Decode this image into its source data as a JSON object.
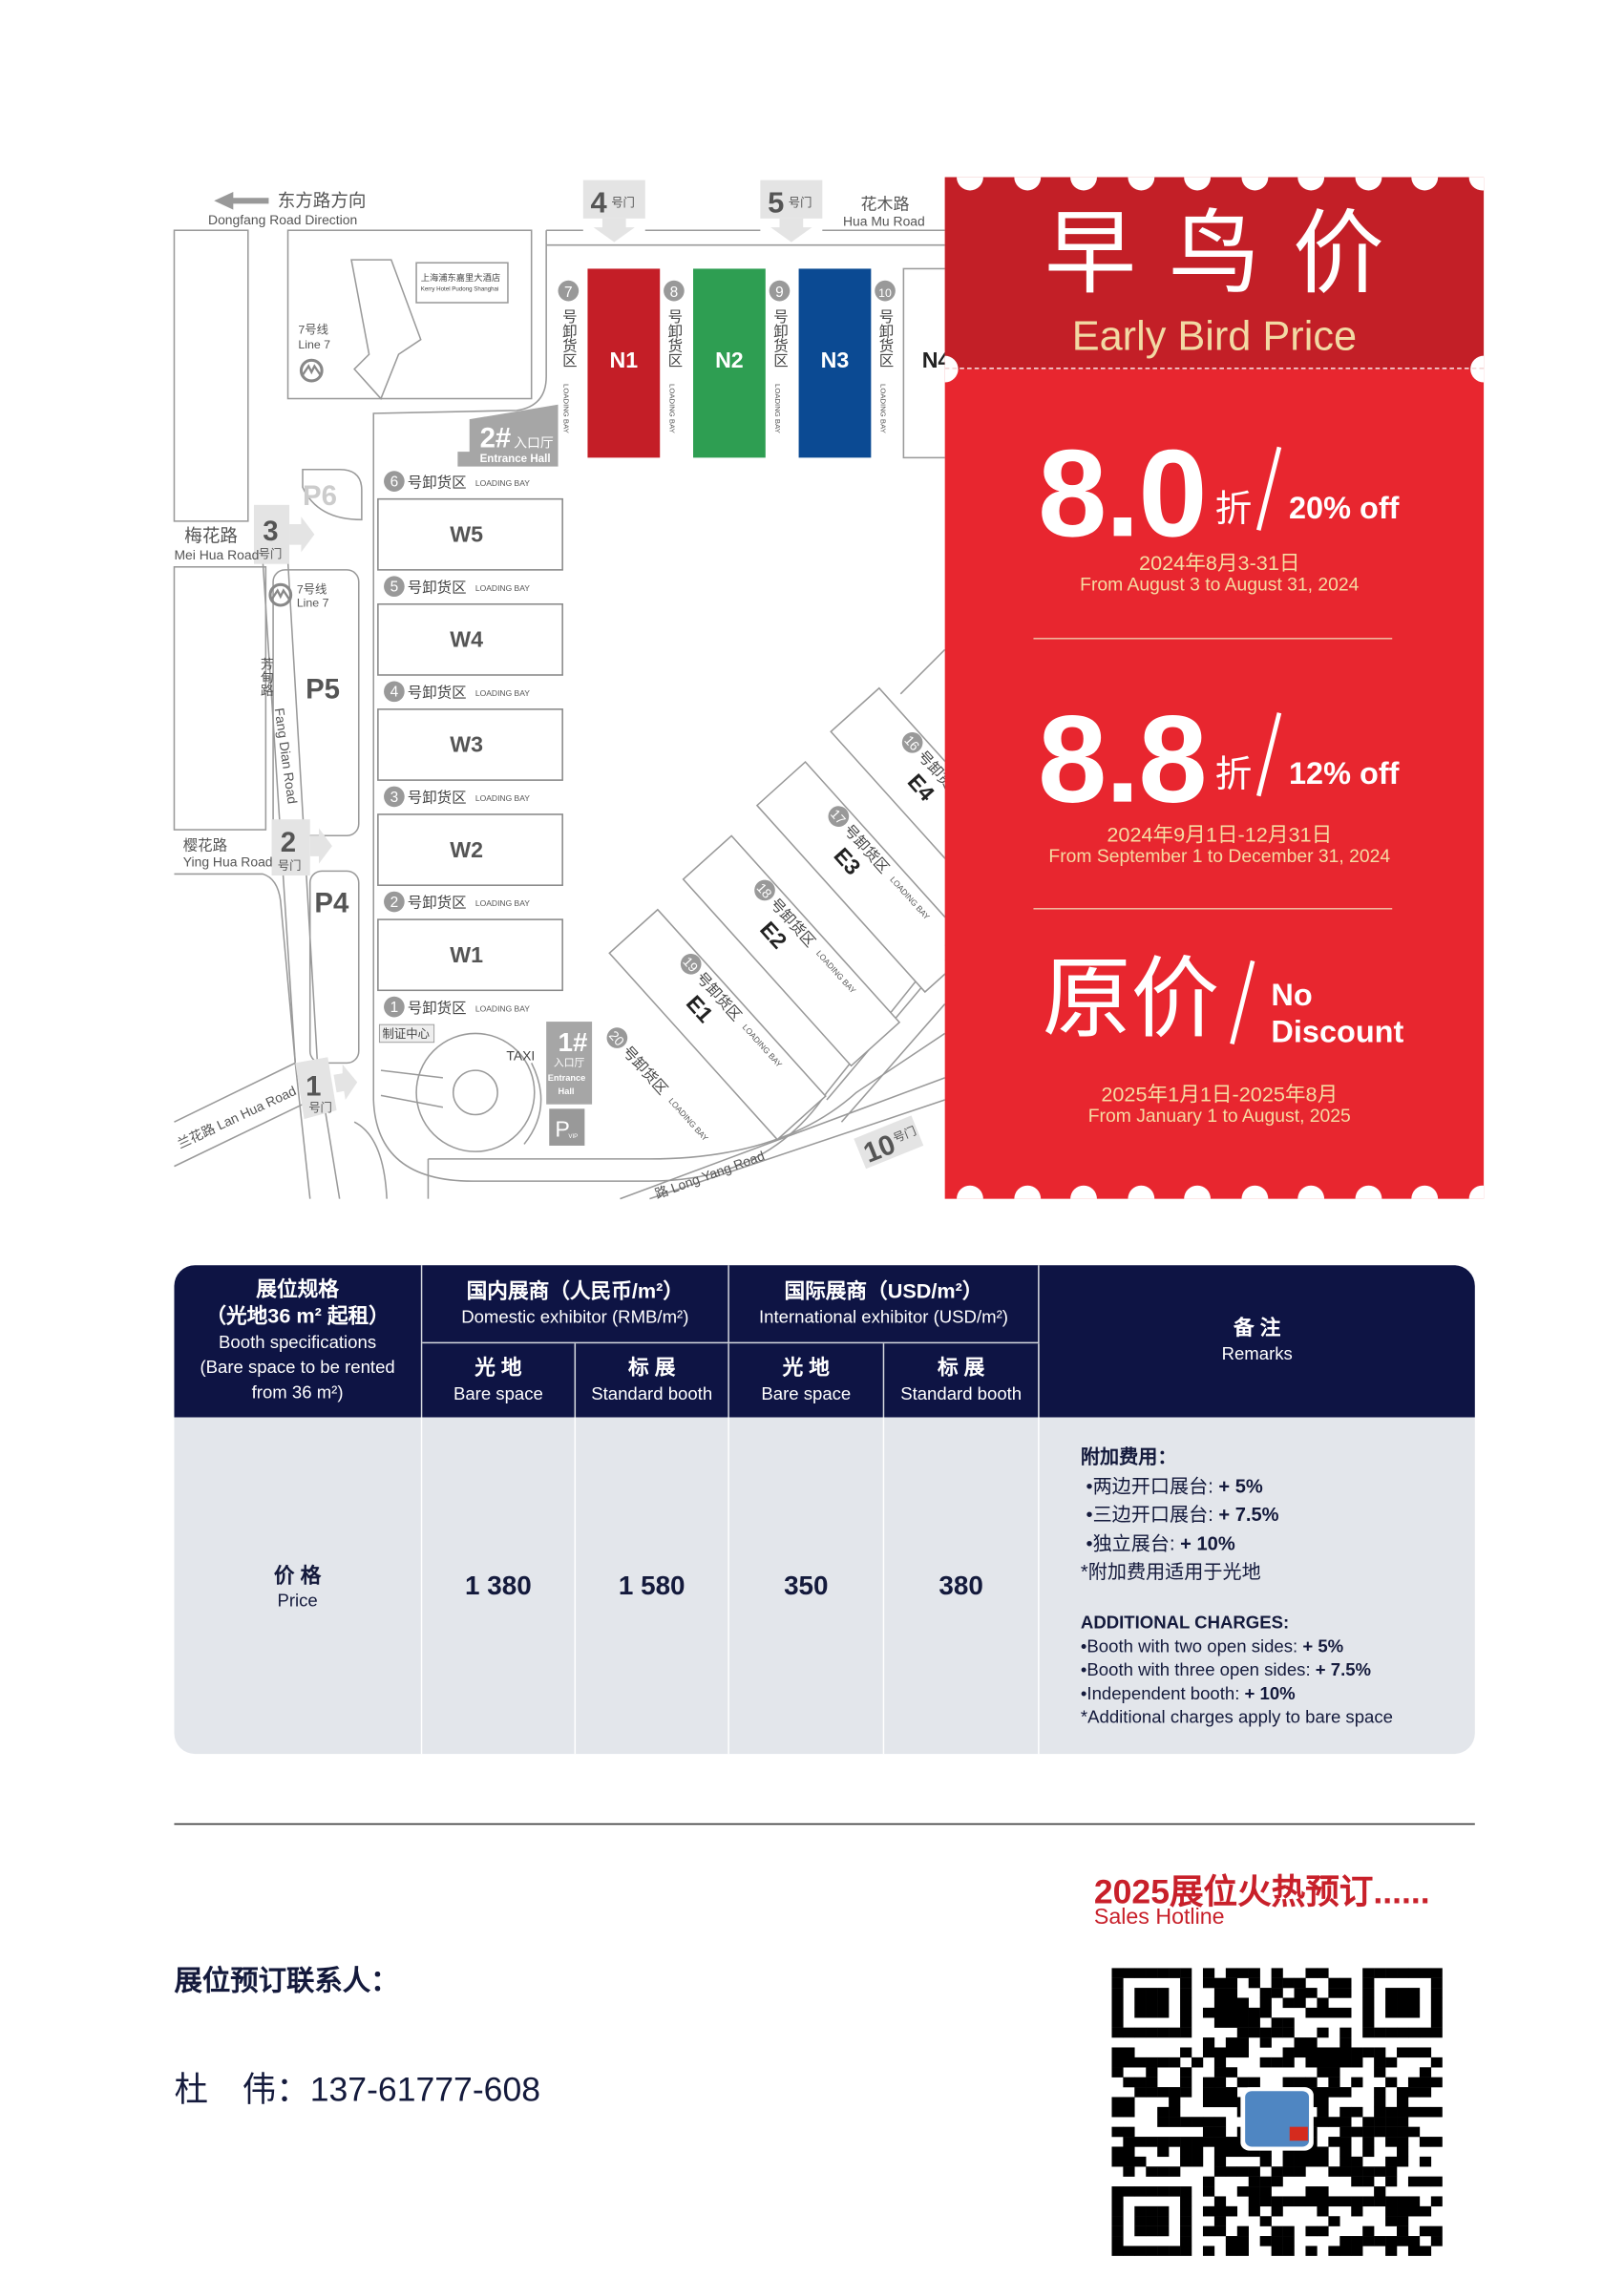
{
  "map": {
    "direction_zh": "东方路方向",
    "direction_en": "Dongfang Road Direction",
    "hua_mu_zh": "花木路",
    "hua_mu_en": "Hua Mu Road",
    "mei_hua_zh": "梅花路",
    "mei_hua_en": "Mei Hua Road",
    "ying_hua_zh": "樱花路",
    "ying_hua_en": "Ying Hua Road",
    "fang_dian_zh": "芳甸路",
    "fang_dian_en": "Fang Dian Road",
    "lan_hua": "兰花路 Lan Hua Road",
    "long_yang": "路 Long Yang Road",
    "gate_suffix": "号门",
    "gates": [
      "4",
      "5",
      "3",
      "2",
      "1",
      "10"
    ],
    "hotel_zh": "上海浦东嘉里大酒店",
    "hotel_en": "Kerry Hotel Pudong Shanghai",
    "metro_zh": "7号线",
    "metro_en": "Line 7",
    "parking": [
      "P6",
      "P5",
      "P4"
    ],
    "entrance2": {
      "num": "2#",
      "zh": "入口厅",
      "en": "Entrance Hall"
    },
    "entrance1": {
      "num": "1#",
      "zh": "入口厅",
      "en1": "Entrance",
      "en2": "Hall"
    },
    "pvip": {
      "p": "P",
      "sub": "VIP"
    },
    "taxi": "TAXI",
    "cert_center": "制证中心",
    "bay_zh": "号卸货区",
    "bay_en": "LOADING BAY",
    "north_halls": [
      {
        "name": "N1",
        "color": "#c41e27",
        "bay": "7"
      },
      {
        "name": "N2",
        "color": "#2e9e52",
        "bay": "8"
      },
      {
        "name": "N3",
        "color": "#0b4a93",
        "bay": "9"
      },
      {
        "name": "N4",
        "color": "#ffffff",
        "bay": "10"
      }
    ],
    "west_halls": [
      {
        "name": "W5",
        "bay": "6"
      },
      {
        "name": "W4",
        "bay": "5"
      },
      {
        "name": "W3",
        "bay": "4"
      },
      {
        "name": "W2",
        "bay": "3"
      },
      {
        "name": "W1",
        "bay": "2"
      }
    ],
    "west_last_bay": "1",
    "east_halls": [
      "E1",
      "E2",
      "E3",
      "E4"
    ],
    "east_bays": [
      "20",
      "19",
      "18",
      "17",
      "16"
    ]
  },
  "promo": {
    "title_zh": "早鸟价",
    "title_en": "Early Bird Price",
    "zhe": "折",
    "tiers": [
      {
        "big": "8.0",
        "off": "20% off",
        "date_zh": "2024年8月3-31日",
        "date_en": "From August 3 to August 31, 2024"
      },
      {
        "big": "8.8",
        "off": "12% off",
        "date_zh": "2024年9月1日-12月31日",
        "date_en": "From September 1 to December 31, 2024"
      }
    ],
    "original": {
      "big": "原价",
      "off1": "No",
      "off2": "Discount",
      "date_zh": "2025年1月1日-2025年8月",
      "date_en": "From January 1 to August, 2025"
    },
    "colors": {
      "header": "#c31f27",
      "body": "#e8262f",
      "accent": "#f2d9a4"
    }
  },
  "table": {
    "spec_zh1": "展位规格",
    "spec_zh2": "（光地36 m² 起租）",
    "spec_en1": "Booth specifications",
    "spec_en2": "(Bare space to be rented",
    "spec_en3": "from 36 m²)",
    "domestic_zh": "国内展商（人民币/m²）",
    "domestic_en": "Domestic exhibitor (RMB/m²)",
    "intl_zh": "国际展商（USD/m²）",
    "intl_en": "International exhibitor (USD/m²)",
    "remarks_zh": "备 注",
    "remarks_en": "Remarks",
    "sub": [
      {
        "zh": "光 地",
        "en": "Bare space"
      },
      {
        "zh": "标 展",
        "en": "Standard booth"
      },
      {
        "zh": "光 地",
        "en": "Bare space"
      },
      {
        "zh": "标 展",
        "en": "Standard booth"
      }
    ],
    "row_zh": "价 格",
    "row_en": "Price",
    "values": [
      "1 380",
      "1 580",
      "350",
      "380"
    ],
    "remarks": {
      "zh_title": "附加费用：",
      "zh_items": [
        {
          "t": "•两边开口展台: ",
          "v": "+ 5%"
        },
        {
          "t": "•三边开口展台: ",
          "v": "+ 7.5%"
        },
        {
          "t": "•独立展台: ",
          "v": "+ 10%"
        }
      ],
      "zh_note": "*附加费用适用于光地",
      "en_title": "ADDITIONAL CHARGES:",
      "en_items": [
        {
          "t": "•Booth with two open sides: ",
          "v": "+ 5%"
        },
        {
          "t": "•Booth with three open sides: ",
          "v": "+ 7.5%"
        },
        {
          "t": "•Independent booth: ",
          "v": "+ 10%"
        }
      ],
      "en_note": "*Additional charges apply to bare space"
    },
    "colors": {
      "header": "#0e1444",
      "body": "#e3e6eb"
    }
  },
  "footer": {
    "hotline_zh": "2025展位火热预订......",
    "hotline_en": "Sales Hotline",
    "contact_label": "展位预订联系人：",
    "contact_name": "杜　伟：",
    "contact_phone": "137-61777-608"
  }
}
